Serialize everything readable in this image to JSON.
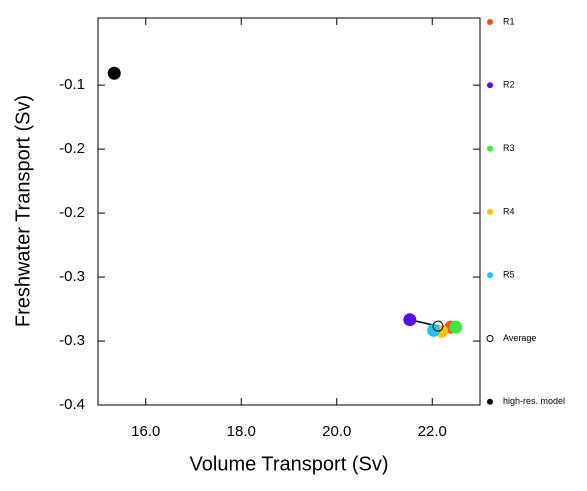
{
  "chart_data": {
    "type": "scatter",
    "xlabel": "Volume Transport (Sv)",
    "ylabel": "Freshwater Transport (Sv)",
    "xlim": [
      15.0,
      23.0
    ],
    "xticks": [
      {
        "value": 16,
        "label": "16.0"
      },
      {
        "value": 18,
        "label": "18.0"
      },
      {
        "value": 20,
        "label": "20.0"
      },
      {
        "value": 22,
        "label": "22.0"
      }
    ],
    "ylim": [
      -0.4,
      -0.037
    ],
    "yticks": [
      {
        "value": -0.1,
        "label": "-0.1"
      },
      {
        "value": -0.16,
        "label": "-0.2"
      },
      {
        "value": -0.22,
        "label": "-0.2"
      },
      {
        "value": -0.28,
        "label": "-0.3"
      },
      {
        "value": -0.34,
        "label": "-0.3"
      },
      {
        "value": -0.4,
        "label": "-0.4"
      }
    ],
    "series": [
      {
        "name": "R1",
        "color": "#ff4d1a",
        "x": [
          22.39
        ],
        "values": [
          -0.327
        ],
        "marker": "filled"
      },
      {
        "name": "R2",
        "color": "#5010e8",
        "x": [
          21.53
        ],
        "values": [
          -0.32
        ],
        "marker": "filled"
      },
      {
        "name": "R3",
        "color": "#3ce83c",
        "x": [
          22.49
        ],
        "values": [
          -0.327
        ],
        "marker": "filled"
      },
      {
        "name": "R4",
        "color": "#ffc20e",
        "x": [
          22.2
        ],
        "values": [
          -0.331
        ],
        "marker": "filled"
      },
      {
        "name": "R5",
        "color": "#20c4f4",
        "x": [
          22.03
        ],
        "values": [
          -0.33
        ],
        "marker": "filled"
      },
      {
        "name": "Average",
        "color": "#000000",
        "x": [
          22.12
        ],
        "values": [
          -0.326
        ],
        "marker": "open"
      },
      {
        "name": "high-res. model",
        "color": "#000000",
        "x": [
          15.34
        ],
        "values": [
          -0.0888
        ],
        "marker": "filled"
      }
    ]
  }
}
